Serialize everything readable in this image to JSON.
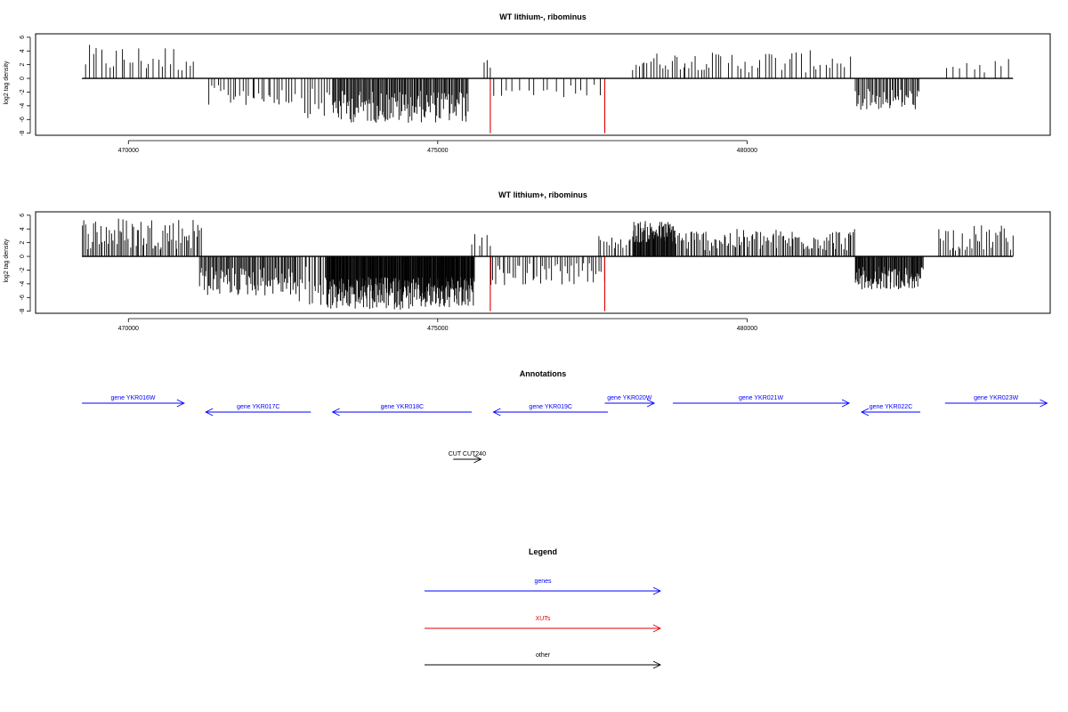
{
  "chart_data": [
    {
      "type": "bar",
      "title": "WT lithium-, ribominus",
      "ylabel": "log2 tag density",
      "xlim": [
        468500,
        484900
      ],
      "ylim": [
        -8.3,
        6.5
      ],
      "yticks": [
        6,
        4,
        2,
        0,
        -2,
        -4,
        -6,
        -8
      ],
      "xticks": [
        470000,
        475000,
        480000
      ],
      "xtick_labels": [
        "470000",
        "475000",
        "480000"
      ],
      "baseline_range": [
        469250,
        484300
      ],
      "highlight_color": "#e00000",
      "highlights": [
        {
          "x": 475850,
          "y": -8
        },
        {
          "x": 477700,
          "y": -8
        }
      ],
      "density_segments": [
        {
          "x0": 469300,
          "x1": 471100,
          "sign": 1,
          "lo": 0.8,
          "hi": 4.9,
          "step": 65
        },
        {
          "x0": 471300,
          "x1": 472700,
          "sign": -1,
          "lo": 1.0,
          "hi": 4.0,
          "step": 50
        },
        {
          "x0": 472800,
          "x1": 473250,
          "sign": -1,
          "lo": 1.5,
          "hi": 5.8,
          "step": 45
        },
        {
          "x0": 473300,
          "x1": 475500,
          "sign": -1,
          "lo": 1.8,
          "hi": 6.5,
          "step": 16
        },
        {
          "x0": 475750,
          "x1": 475850,
          "sign": 1,
          "lo": 1.5,
          "hi": 3.3,
          "step": 50
        },
        {
          "x0": 475900,
          "x1": 477700,
          "sign": -1,
          "lo": 0.8,
          "hi": 2.8,
          "step": 110
        },
        {
          "x0": 478150,
          "x1": 479600,
          "sign": 1,
          "lo": 1.2,
          "hi": 3.8,
          "step": 48
        },
        {
          "x0": 479700,
          "x1": 481700,
          "sign": 1,
          "lo": 0.8,
          "hi": 4.1,
          "step": 65
        },
        {
          "x0": 481750,
          "x1": 482800,
          "sign": -1,
          "lo": 1.5,
          "hi": 4.6,
          "step": 22
        },
        {
          "x0": 483200,
          "x1": 484250,
          "sign": 1,
          "lo": 0.8,
          "hi": 3.2,
          "step": 110
        }
      ]
    },
    {
      "type": "bar",
      "title": "WT lithium+, ribominus",
      "ylabel": "log2 tag density",
      "xlim": [
        468500,
        484900
      ],
      "ylim": [
        -8.3,
        6.5
      ],
      "yticks": [
        6,
        4,
        2,
        0,
        -2,
        -4,
        -6,
        -8
      ],
      "xticks": [
        470000,
        475000,
        480000
      ],
      "xtick_labels": [
        "470000",
        "475000",
        "480000"
      ],
      "baseline_range": [
        469250,
        484300
      ],
      "highlight_color": "#e00000",
      "highlights": [
        {
          "x": 475850,
          "y": -8
        },
        {
          "x": 477700,
          "y": -8
        }
      ],
      "density_segments": [
        {
          "x0": 469250,
          "x1": 471200,
          "sign": 1,
          "lo": 1.0,
          "hi": 5.8,
          "step": 28
        },
        {
          "x0": 471150,
          "x1": 472700,
          "sign": -1,
          "lo": 1.5,
          "hi": 5.8,
          "step": 18
        },
        {
          "x0": 472700,
          "x1": 473200,
          "sign": -1,
          "lo": 1.5,
          "hi": 8.0,
          "step": 30
        },
        {
          "x0": 473200,
          "x1": 475600,
          "sign": -1,
          "lo": 3.0,
          "hi": 7.8,
          "step": 9
        },
        {
          "x0": 475550,
          "x1": 475850,
          "sign": 1,
          "lo": 1.5,
          "hi": 3.3,
          "step": 60
        },
        {
          "x0": 475850,
          "x1": 477700,
          "sign": -1,
          "lo": 1.0,
          "hi": 4.2,
          "step": 40
        },
        {
          "x0": 477600,
          "x1": 478150,
          "sign": 1,
          "lo": 1.0,
          "hi": 3.1,
          "step": 40
        },
        {
          "x0": 478150,
          "x1": 478850,
          "sign": 1,
          "lo": 2.0,
          "hi": 5.2,
          "step": 11
        },
        {
          "x0": 478850,
          "x1": 481750,
          "sign": 1,
          "lo": 0.8,
          "hi": 4.0,
          "step": 26
        },
        {
          "x0": 481750,
          "x1": 482850,
          "sign": -1,
          "lo": 1.5,
          "hi": 4.8,
          "step": 12
        },
        {
          "x0": 483100,
          "x1": 484300,
          "sign": 1,
          "lo": 0.8,
          "hi": 4.6,
          "step": 35
        }
      ]
    },
    {
      "type": "annotation_track",
      "title": "Annotations",
      "xlim": [
        468500,
        484900
      ],
      "features": [
        {
          "label": "gene YKR016W",
          "start": 469250,
          "end": 470900,
          "strand": "+",
          "row": 0,
          "color": "#0000ff"
        },
        {
          "label": "gene YKR017C",
          "start": 471250,
          "end": 472950,
          "strand": "-",
          "row": 1,
          "color": "#0000ff"
        },
        {
          "label": "gene YKR018C",
          "start": 473300,
          "end": 475550,
          "strand": "-",
          "row": 1,
          "color": "#0000ff"
        },
        {
          "label": "gene YKR019C",
          "start": 475900,
          "end": 477750,
          "strand": "-",
          "row": 1,
          "color": "#0000ff"
        },
        {
          "label": "gene YKR020W",
          "start": 477700,
          "end": 478500,
          "strand": "+",
          "row": 0,
          "color": "#0000ff"
        },
        {
          "label": "gene YKR021W",
          "start": 478800,
          "end": 481650,
          "strand": "+",
          "row": 0,
          "color": "#0000ff"
        },
        {
          "label": "gene YKR022C",
          "start": 481850,
          "end": 482800,
          "strand": "-",
          "row": 1,
          "color": "#0000ff"
        },
        {
          "label": "gene YKR023W",
          "start": 483200,
          "end": 484850,
          "strand": "+",
          "row": 0,
          "color": "#0000ff"
        },
        {
          "label": "CUT CUT240",
          "start": 475250,
          "end": 475700,
          "strand": "+",
          "row": 2,
          "color": "#000000"
        }
      ]
    }
  ],
  "legend": {
    "title": "Legend",
    "items": [
      {
        "label": "genes",
        "color": "#0000ff"
      },
      {
        "label": "XUTs",
        "color": "#e00000"
      },
      {
        "label": "other",
        "color": "#000000"
      }
    ]
  }
}
